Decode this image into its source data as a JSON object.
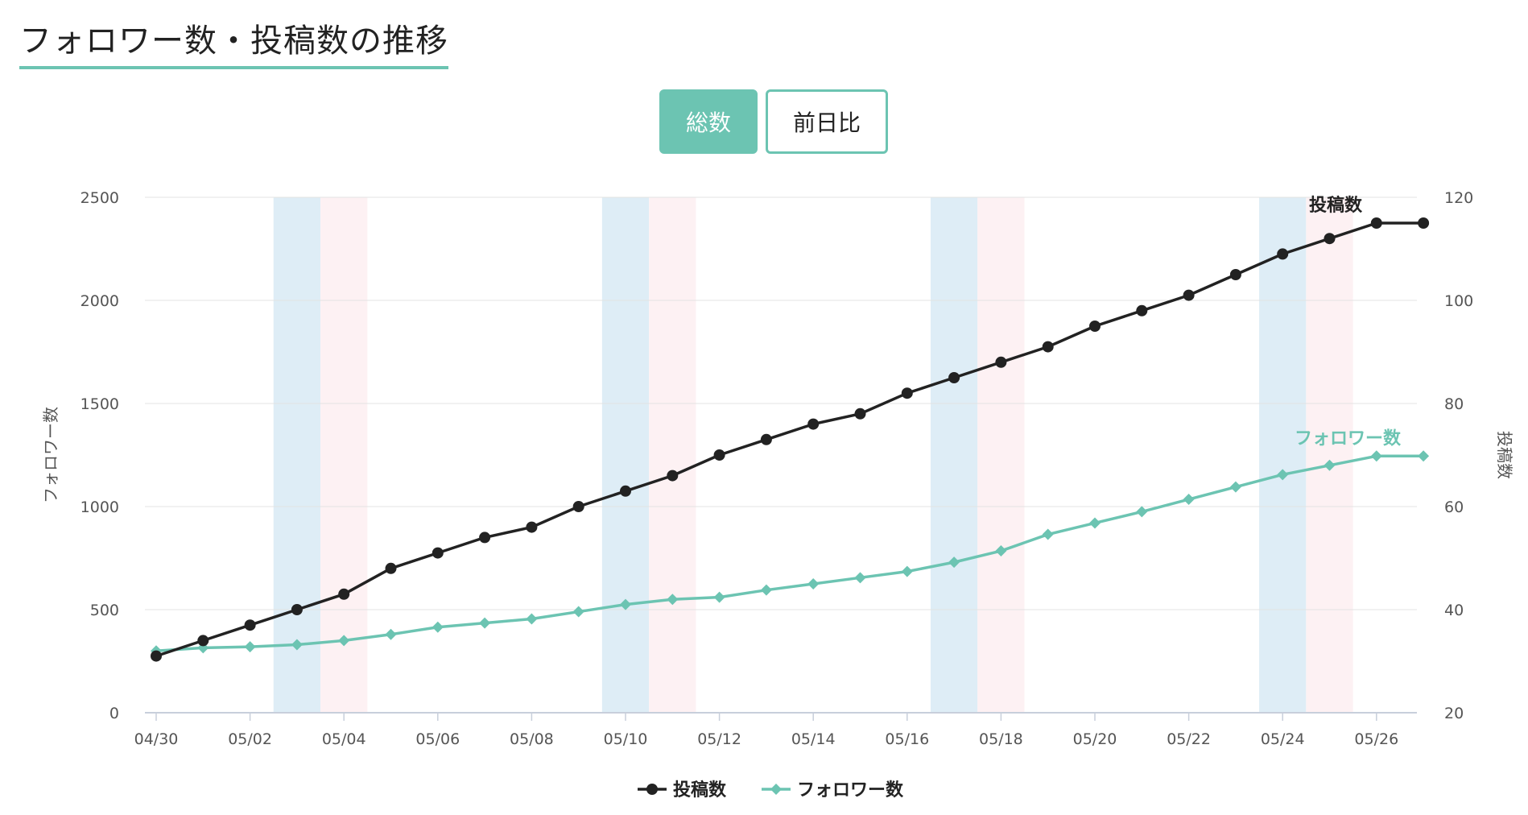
{
  "page": {
    "title": "フォロワー数・投稿数の推移"
  },
  "toggle": {
    "total_label": "総数",
    "diff_label": "前日比",
    "selected": "総数"
  },
  "colors": {
    "accent": "#6cc4b2",
    "posts": "#222222",
    "followers": "#6cc4b2",
    "weekend_sat": "#deedf6",
    "weekend_sun": "#fdf1f3",
    "grid": "#e3e3e3"
  },
  "chart_data": {
    "type": "line",
    "x": [
      "04/30",
      "05/01",
      "05/02",
      "05/03",
      "05/04",
      "05/05",
      "05/06",
      "05/07",
      "05/08",
      "05/09",
      "05/10",
      "05/11",
      "05/12",
      "05/13",
      "05/14",
      "05/15",
      "05/16",
      "05/17",
      "05/18",
      "05/19",
      "05/20",
      "05/21",
      "05/22",
      "05/23",
      "05/24",
      "05/25",
      "05/26",
      "05/27"
    ],
    "x_tick_labels": [
      "04/30",
      "05/02",
      "05/04",
      "05/06",
      "05/08",
      "05/10",
      "05/12",
      "05/14",
      "05/16",
      "05/18",
      "05/20",
      "05/22",
      "05/24",
      "05/26"
    ],
    "series": [
      {
        "name": "投稿数",
        "axis": "right",
        "color": "#222222",
        "marker": "circle",
        "values": [
          31,
          34,
          37,
          40,
          43,
          48,
          51,
          54,
          56,
          60,
          63,
          66,
          70,
          73,
          76,
          78,
          82,
          85,
          88,
          91,
          95,
          98,
          101,
          105,
          109,
          112,
          115,
          115
        ]
      },
      {
        "name": "フォロワー数",
        "axis": "left",
        "color": "#6cc4b2",
        "marker": "diamond",
        "values": [
          300,
          315,
          320,
          330,
          350,
          380,
          415,
          435,
          455,
          490,
          525,
          550,
          560,
          595,
          625,
          655,
          685,
          730,
          785,
          865,
          920,
          975,
          1035,
          1095,
          1155,
          1200,
          1245,
          1245
        ]
      }
    ],
    "y_left": {
      "label": "フォロワー数",
      "ylim": [
        0,
        2500
      ],
      "ticks": [
        0,
        500,
        1000,
        1500,
        2000,
        2500
      ]
    },
    "y_right": {
      "label": "投稿数",
      "ylim": [
        20,
        120
      ],
      "ticks": [
        20,
        40,
        60,
        80,
        100,
        120
      ]
    },
    "weekend_bands": [
      {
        "sat": "05/03",
        "sun": "05/04"
      },
      {
        "sat": "05/10",
        "sun": "05/11"
      },
      {
        "sat": "05/17",
        "sun": "05/18"
      },
      {
        "sat": "05/24",
        "sun": "05/25"
      }
    ],
    "grid": true,
    "legend": {
      "position": "bottom-center",
      "items": [
        "投稿数",
        "フォロワー数"
      ]
    }
  }
}
